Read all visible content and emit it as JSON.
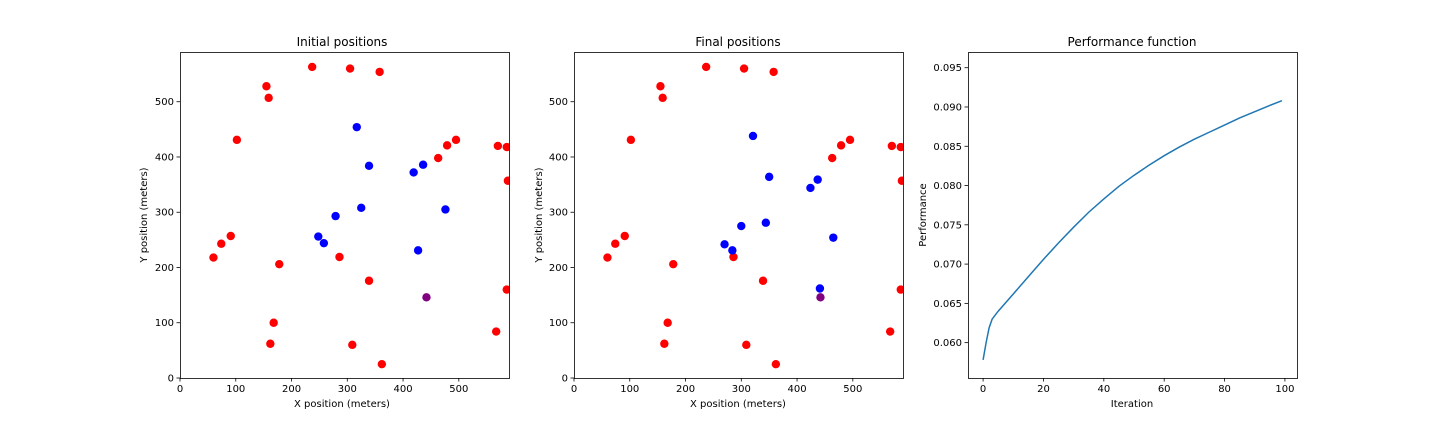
{
  "chart_data": [
    {
      "type": "scatter",
      "title": "Initial positions",
      "xlabel": "X position (meters)",
      "ylabel": "Y position (meters)",
      "xlim": [
        0,
        590
      ],
      "ylim": [
        0,
        590
      ],
      "xticks": [
        "0",
        "100",
        "200",
        "300",
        "400",
        "500"
      ],
      "yticks": [
        "0",
        "100",
        "200",
        "300",
        "400",
        "500"
      ],
      "grid": false,
      "series": [
        {
          "color": "#ff0000",
          "points": [
            [
              237,
              563
            ],
            [
              305,
              560
            ],
            [
              358,
              554
            ],
            [
              155,
              528
            ],
            [
              159,
              507
            ],
            [
              102,
              431
            ],
            [
              495,
              431
            ],
            [
              479,
              421
            ],
            [
              570,
              420
            ],
            [
              586,
              418
            ],
            [
              463,
              398
            ],
            [
              588,
              357
            ],
            [
              91,
              257
            ],
            [
              74,
              243
            ],
            [
              60,
              218
            ],
            [
              178,
              206
            ],
            [
              286,
              219
            ],
            [
              339,
              176
            ],
            [
              586,
              160
            ],
            [
              168,
              100
            ],
            [
              567,
              84
            ],
            [
              162,
              62
            ],
            [
              309,
              60
            ],
            [
              362,
              25
            ]
          ]
        },
        {
          "color": "#0000ff",
          "points": [
            [
              317,
              454
            ],
            [
              339,
              384
            ],
            [
              436,
              386
            ],
            [
              419,
              372
            ],
            [
              325,
              308
            ],
            [
              476,
              305
            ],
            [
              279,
              293
            ],
            [
              248,
              256
            ],
            [
              258,
              244
            ],
            [
              427,
              231
            ]
          ]
        },
        {
          "color": "#800080",
          "points": [
            [
              442,
              146
            ]
          ]
        }
      ]
    },
    {
      "type": "scatter",
      "title": "Final positions",
      "xlabel": "X position (meters)",
      "ylabel": "Y position (meters)",
      "xlim": [
        0,
        590
      ],
      "ylim": [
        0,
        590
      ],
      "xticks": [
        "0",
        "100",
        "200",
        "300",
        "400",
        "500"
      ],
      "yticks": [
        "0",
        "100",
        "200",
        "300",
        "400",
        "500"
      ],
      "grid": false,
      "series": [
        {
          "color": "#ff0000",
          "points": [
            [
              237,
              563
            ],
            [
              305,
              560
            ],
            [
              358,
              554
            ],
            [
              155,
              528
            ],
            [
              159,
              507
            ],
            [
              102,
              431
            ],
            [
              495,
              431
            ],
            [
              479,
              421
            ],
            [
              570,
              420
            ],
            [
              586,
              418
            ],
            [
              463,
              398
            ],
            [
              588,
              357
            ],
            [
              91,
              257
            ],
            [
              74,
              243
            ],
            [
              60,
              218
            ],
            [
              178,
              206
            ],
            [
              286,
              219
            ],
            [
              339,
              176
            ],
            [
              586,
              160
            ],
            [
              168,
              100
            ],
            [
              567,
              84
            ],
            [
              162,
              62
            ],
            [
              309,
              60
            ],
            [
              362,
              25
            ]
          ]
        },
        {
          "color": "#0000ff",
          "points": [
            [
              321,
              438
            ],
            [
              350,
              364
            ],
            [
              424,
              344
            ],
            [
              437,
              359
            ],
            [
              300,
              275
            ],
            [
              344,
              281
            ],
            [
              465,
              254
            ],
            [
              270,
              242
            ],
            [
              284,
              231
            ],
            [
              441,
              162
            ]
          ]
        },
        {
          "color": "#800080",
          "points": [
            [
              442,
              146
            ]
          ]
        }
      ]
    },
    {
      "type": "line",
      "title": "Performance function",
      "xlabel": "Iteration",
      "ylabel": "Performance",
      "xlim": [
        -5,
        104
      ],
      "ylim": [
        0.0555,
        0.097
      ],
      "xticks": [
        0,
        20,
        40,
        60,
        80,
        100
      ],
      "yticks": [
        0.06,
        0.065,
        0.07,
        0.075,
        0.08,
        0.085,
        0.09,
        0.095
      ],
      "ytick_labels": [
        "0.060",
        "0.065",
        "0.070",
        "0.075",
        "0.080",
        "0.085",
        "0.090",
        "0.095"
      ],
      "grid": false,
      "series": [
        {
          "color": "#1f77b4",
          "x": [
            0,
            1,
            2,
            3,
            5,
            10,
            15,
            20,
            25,
            30,
            35,
            40,
            45,
            50,
            55,
            60,
            65,
            70,
            75,
            80,
            85,
            90,
            95,
            99
          ],
          "values": [
            0.0578,
            0.06,
            0.0619,
            0.063,
            0.064,
            0.0662,
            0.0684,
            0.0706,
            0.0727,
            0.0747,
            0.0766,
            0.0783,
            0.0799,
            0.0813,
            0.0826,
            0.0838,
            0.0849,
            0.0859,
            0.0868,
            0.0877,
            0.0886,
            0.0894,
            0.0902,
            0.0908
          ]
        }
      ]
    }
  ]
}
